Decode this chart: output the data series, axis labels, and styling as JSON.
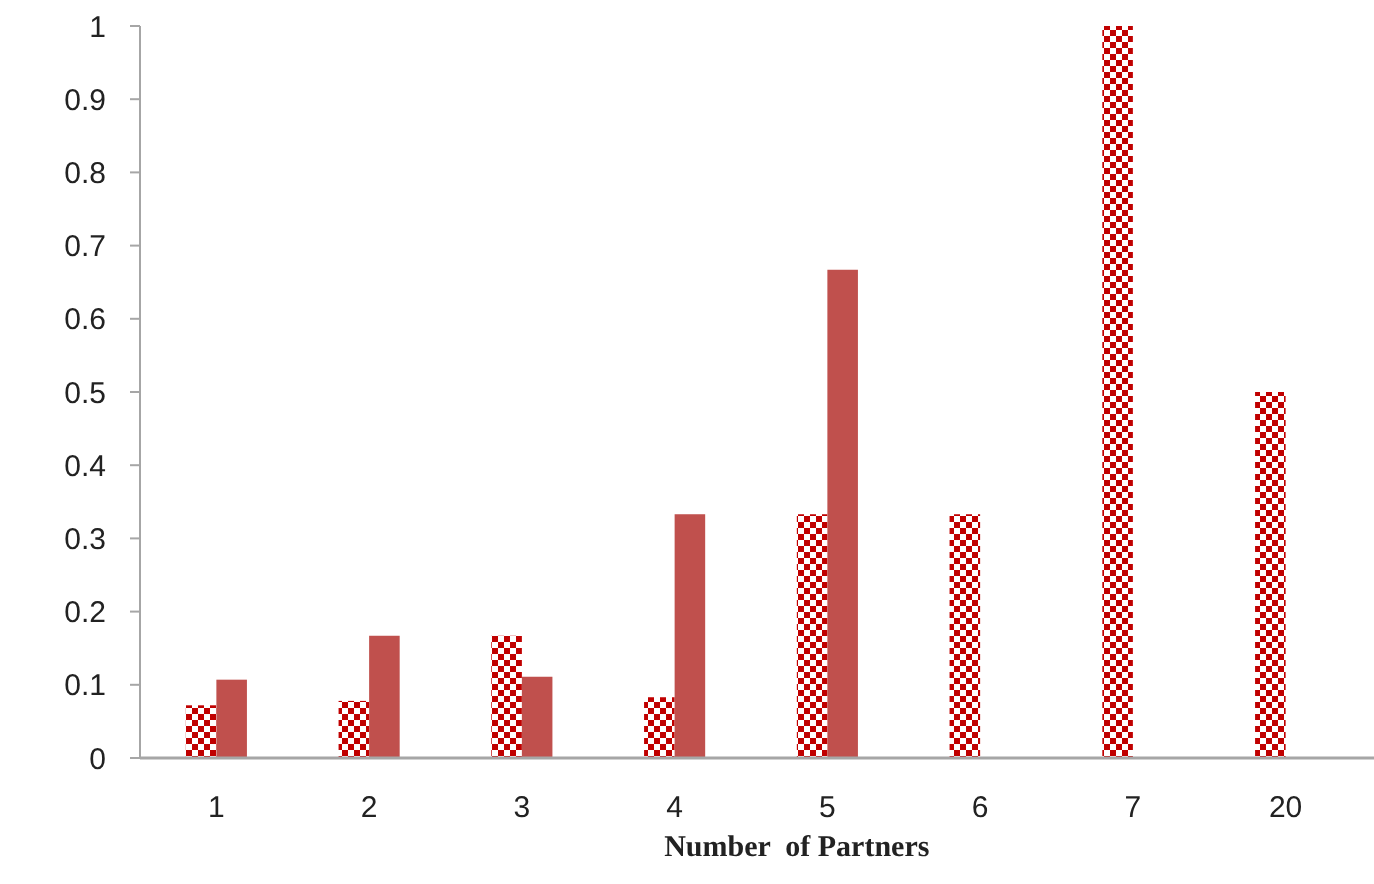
{
  "chart_data": {
    "type": "bar",
    "xlabel": "Number  of Partners",
    "categories": [
      "1",
      "2",
      "3",
      "4",
      "5",
      "6",
      "7",
      "20"
    ],
    "series": [
      {
        "color": "#c00000",
        "values": [
          0.072,
          0.078,
          0.167,
          0.083,
          0.333,
          0.333,
          1,
          0.5
        ]
      },
      {
        "color": "#c0504d",
        "values": [
          0.107,
          0.167,
          0.111,
          0.333,
          0.667,
          null,
          null,
          null
        ]
      }
    ],
    "ylim": [
      0,
      1
    ],
    "yticks": [
      0,
      0.1,
      0.2,
      0.3,
      0.4,
      0.5,
      0.6,
      0.7,
      0.8,
      0.9,
      1
    ],
    "grid": false
  }
}
